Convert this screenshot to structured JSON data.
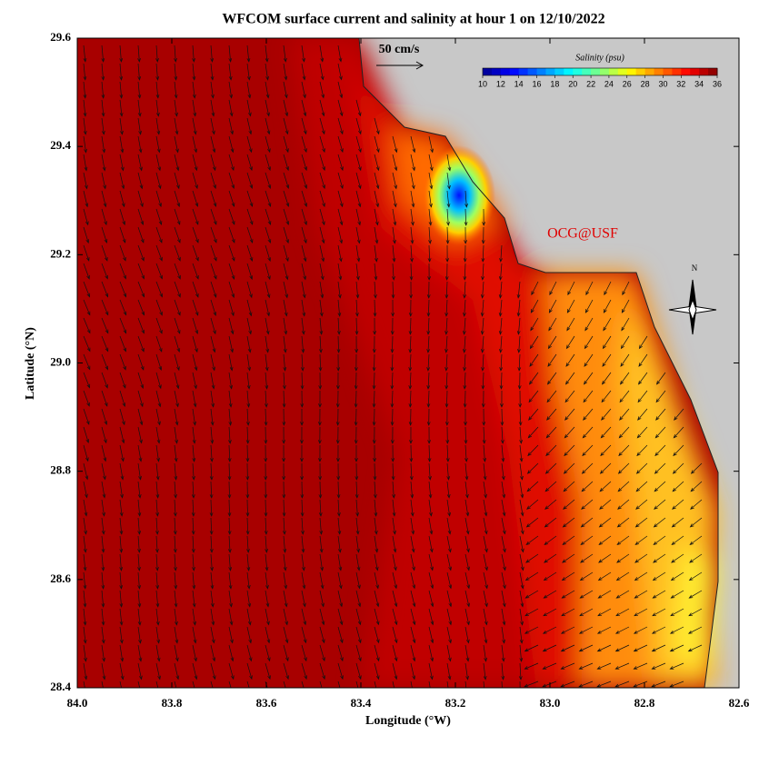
{
  "title": "WFCOM surface current and salinity at hour 1 on 12/10/2022",
  "x_axis": {
    "label": "Longitude (°W)",
    "lim": [
      84.0,
      82.6
    ],
    "ticks": [
      {
        "value": 84.0,
        "label": "84.0"
      },
      83.8,
      83.6,
      83.4,
      83.2,
      {
        "value": 83.0,
        "label": "83.0"
      },
      82.8,
      82.6
    ]
  },
  "y_axis": {
    "label": "Latitude (°N)",
    "lim": [
      28.4,
      29.6
    ],
    "ticks": [
      28.4,
      28.6,
      28.8,
      {
        "value": 29.0,
        "label": "29.0"
      },
      29.2,
      29.4,
      29.6
    ]
  },
  "colorbar": {
    "title": "Salinity (psu)",
    "ticks": [
      10,
      12,
      14,
      16,
      18,
      20,
      22,
      24,
      26,
      28,
      30,
      32,
      34,
      36
    ],
    "colors": [
      "#00008f",
      "#0000ff",
      "#0080ff",
      "#00ffff",
      "#80ff80",
      "#ffff00",
      "#ff8000",
      "#ff0000",
      "#800000"
    ]
  },
  "scale_arrow": "50 cm/s",
  "credit": "OCG@USF",
  "compass": "N"
}
